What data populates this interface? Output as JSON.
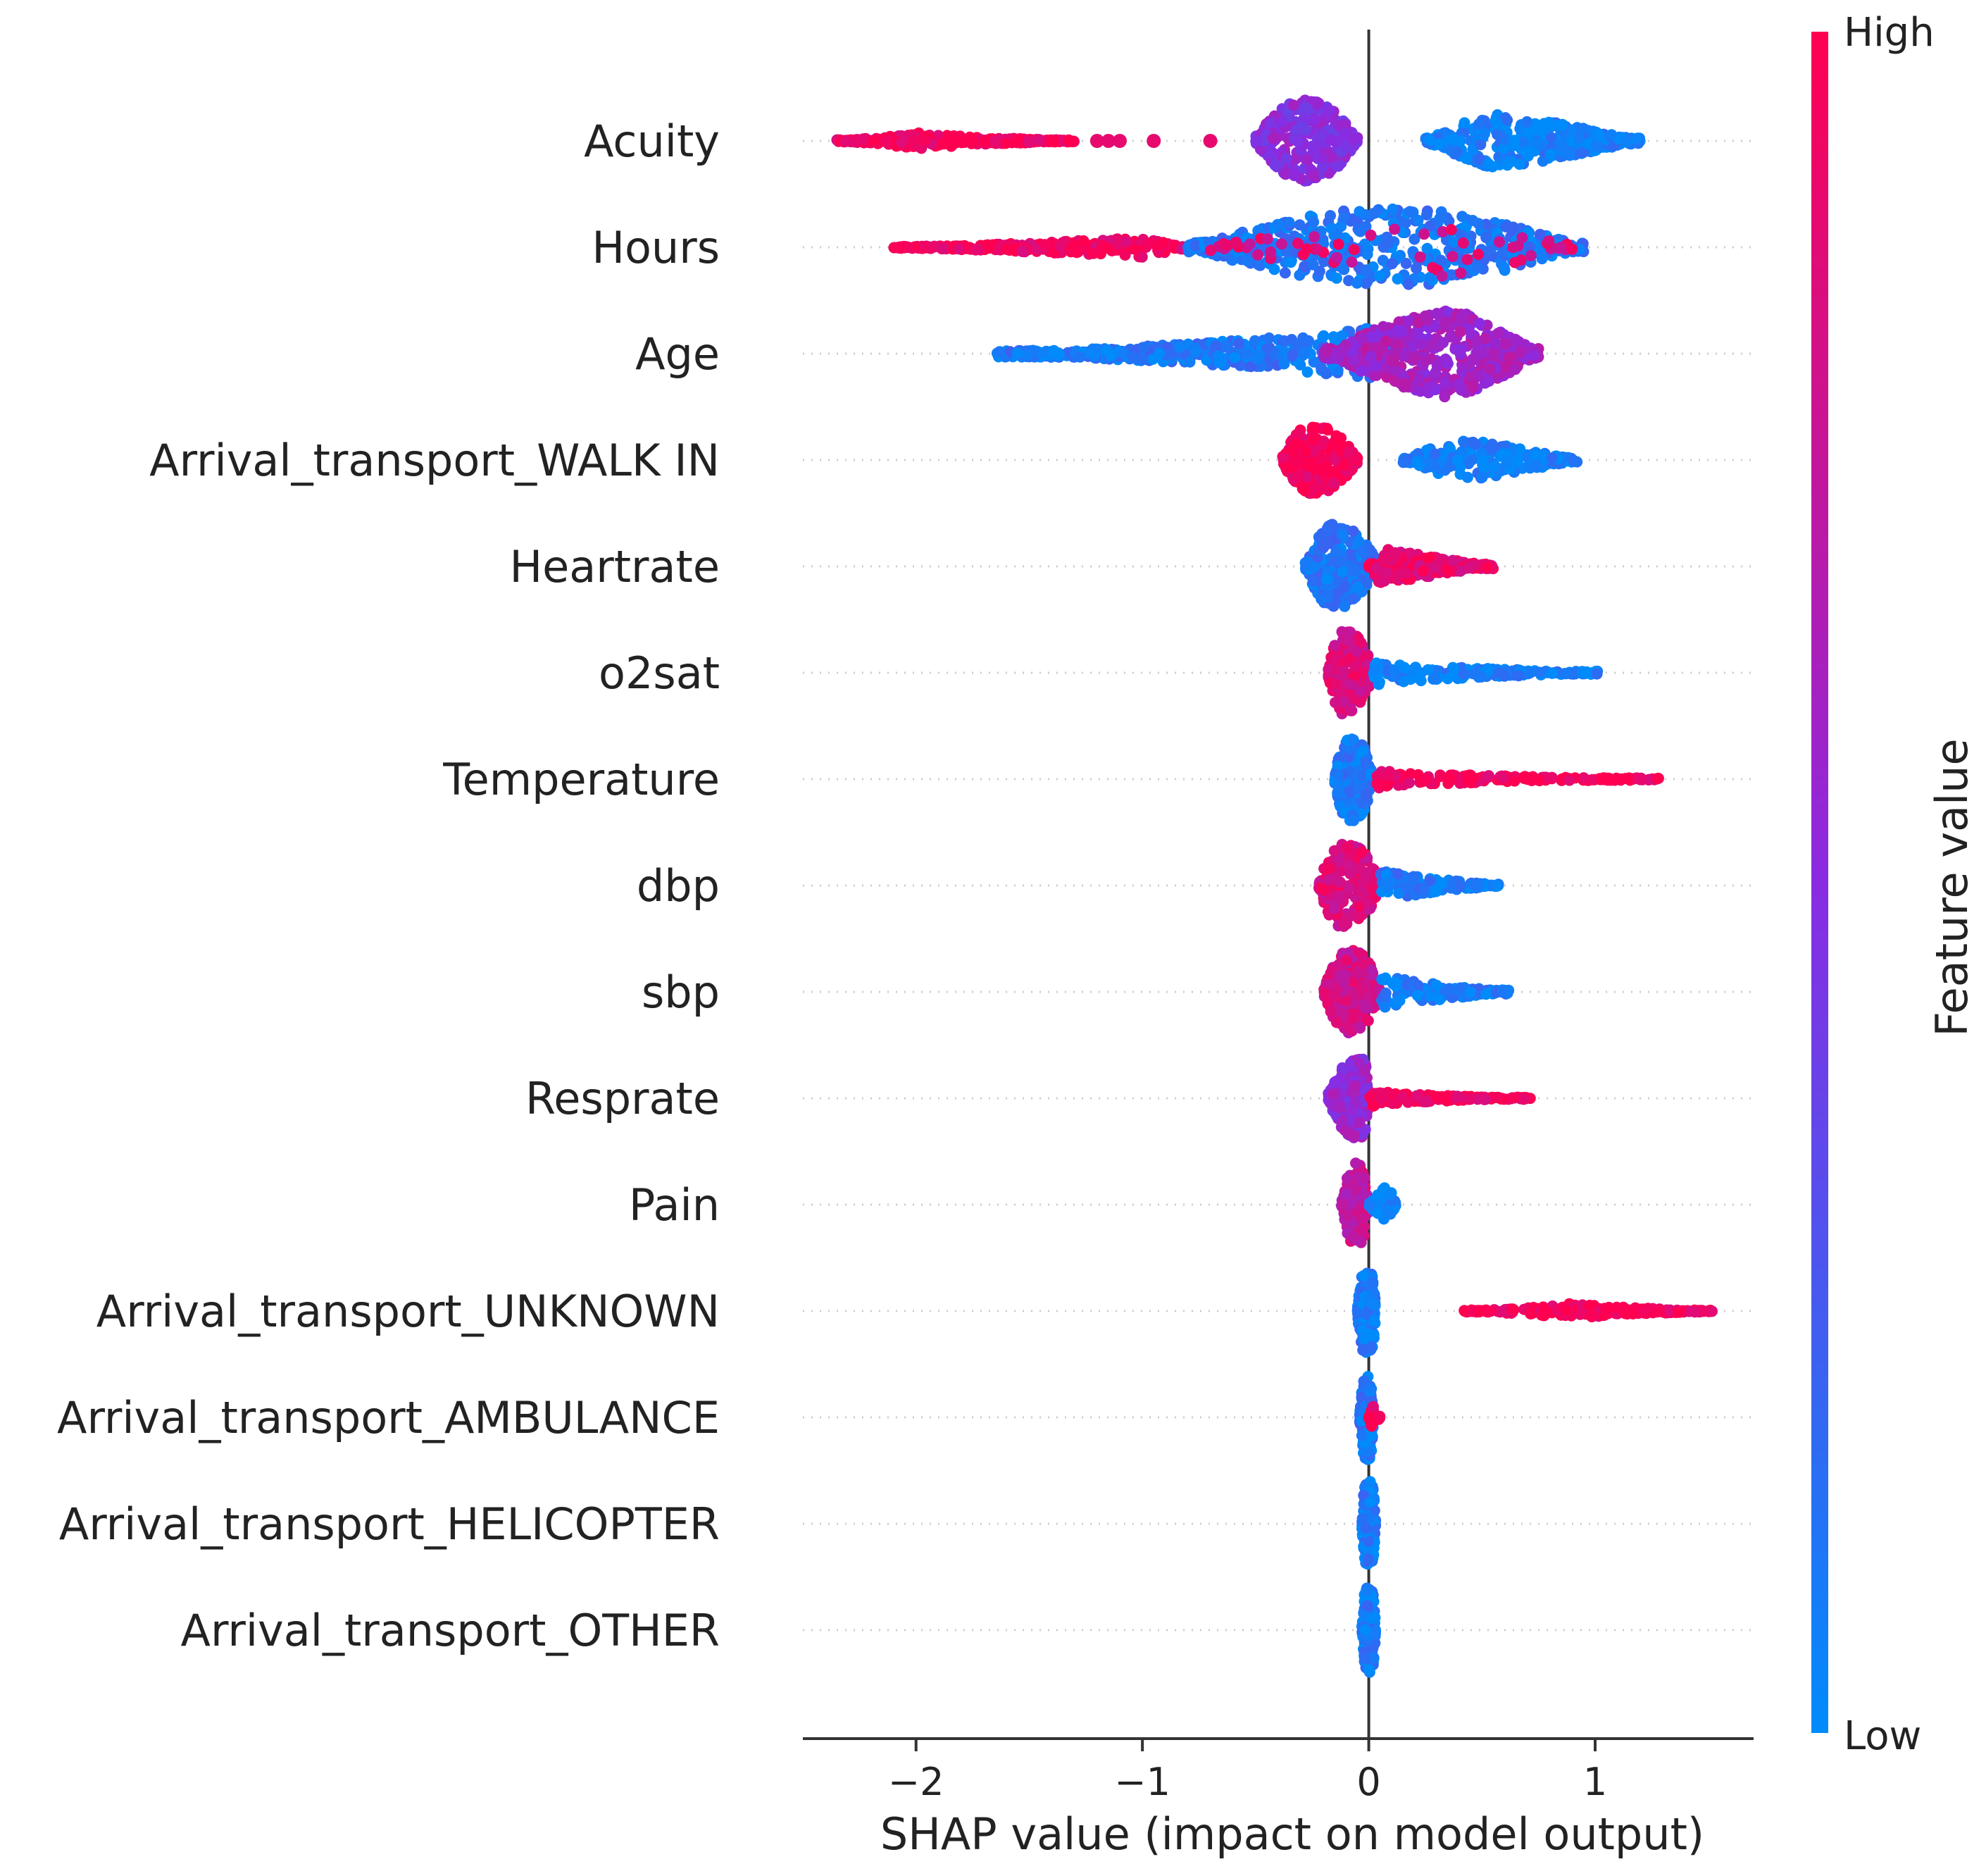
{
  "chart_data": {
    "type": "scatter",
    "subtype": "shap-beeswarm-summary",
    "title": "",
    "xlabel": "SHAP value (impact on model output)",
    "ylabel": "",
    "xlim": [
      -2.5,
      1.7
    ],
    "x_ticks": [
      -2,
      -1,
      0,
      1
    ],
    "x_tick_labels": [
      "−2",
      "−1",
      "0",
      "1"
    ],
    "grid": "horizontal-dotted",
    "zero_line": true,
    "colorbar": {
      "title": "Feature value",
      "high_label": "High",
      "low_label": "Low",
      "high_color": "#ff0051",
      "low_color": "#008bfb",
      "mid_color": "#8a2be2"
    },
    "features": [
      {
        "name": "Acuity",
        "min": -2.35,
        "max": 1.2,
        "high_range": [
          -2.35,
          -1.3
        ],
        "high_outliers": [
          -1.2,
          -1.15,
          -1.1,
          -0.95,
          -0.7
        ],
        "mid_range": [
          -0.5,
          -0.05
        ],
        "low_range": [
          0.25,
          1.2
        ],
        "mid_peak": -0.28,
        "low_peak": 0.55
      },
      {
        "name": "Hours",
        "min": -2.2,
        "max": 0.95,
        "high_range": [
          -2.1,
          -0.75
        ],
        "low_range": [
          -0.8,
          0.95
        ],
        "peak": 0.1
      },
      {
        "name": "Age",
        "min": -1.65,
        "max": 0.75,
        "low_range": [
          -1.65,
          0.1
        ],
        "high_range": [
          -0.1,
          0.75
        ],
        "peak": 0.35
      },
      {
        "name": "Arrival_transport_WALK IN",
        "min": -0.38,
        "max": 0.92,
        "high_range": [
          -0.38,
          -0.05
        ],
        "low_range": [
          0.15,
          0.92
        ],
        "high_peak": -0.25,
        "low_peak": 0.4
      },
      {
        "name": "Heartrate",
        "min": -0.28,
        "max": 0.55,
        "low_range": [
          -0.28,
          0.05
        ],
        "high_range": [
          -0.05,
          0.55
        ],
        "peak": -0.15
      },
      {
        "name": "o2sat",
        "min": -0.18,
        "max": 1.02,
        "high_range": [
          -0.18,
          0.02
        ],
        "low_range": [
          0.02,
          1.02
        ],
        "peak": -0.1
      },
      {
        "name": "Temperature",
        "min": -0.15,
        "max": 1.28,
        "low_range": [
          -0.15,
          0.02
        ],
        "high_range": [
          0.02,
          1.28
        ],
        "peak": -0.08
      },
      {
        "name": "dbp",
        "min": -0.22,
        "max": 0.58,
        "high_range": [
          -0.22,
          0.05
        ],
        "low_range": [
          0.05,
          0.58
        ],
        "peak": -0.1
      },
      {
        "name": "sbp",
        "min": -0.2,
        "max": 0.62,
        "high_range": [
          -0.2,
          0.05
        ],
        "low_range": [
          0.05,
          0.62
        ],
        "peak": -0.08
      },
      {
        "name": "Resprate",
        "min": -0.18,
        "max": 0.72,
        "low_range": [
          -0.18,
          0.0
        ],
        "high_range": [
          0.0,
          0.72
        ],
        "peak": -0.03
      },
      {
        "name": "Pain",
        "min": -0.12,
        "max": 0.12,
        "high_range": [
          -0.12,
          0.0
        ],
        "low_range": [
          0.0,
          0.12
        ],
        "peak": -0.05
      },
      {
        "name": "Arrival_transport_UNKNOWN",
        "min": -0.05,
        "max": 1.52,
        "low_range": [
          -0.05,
          0.03
        ],
        "high_range": [
          0.42,
          1.52
        ],
        "peak": 0.0
      },
      {
        "name": "Arrival_transport_AMBULANCE",
        "min": -0.04,
        "max": 0.05,
        "low_range": [
          -0.04,
          0.02
        ],
        "high_range": [
          0.0,
          0.05
        ],
        "peak": 0.0
      },
      {
        "name": "Arrival_transport_HELICOPTER",
        "min": -0.03,
        "max": 0.03,
        "low_range": [
          -0.03,
          0.03
        ],
        "peak": 0.0
      },
      {
        "name": "Arrival_transport_OTHER",
        "min": -0.03,
        "max": 0.03,
        "low_range": [
          -0.03,
          0.03
        ],
        "peak": 0.0
      }
    ]
  }
}
